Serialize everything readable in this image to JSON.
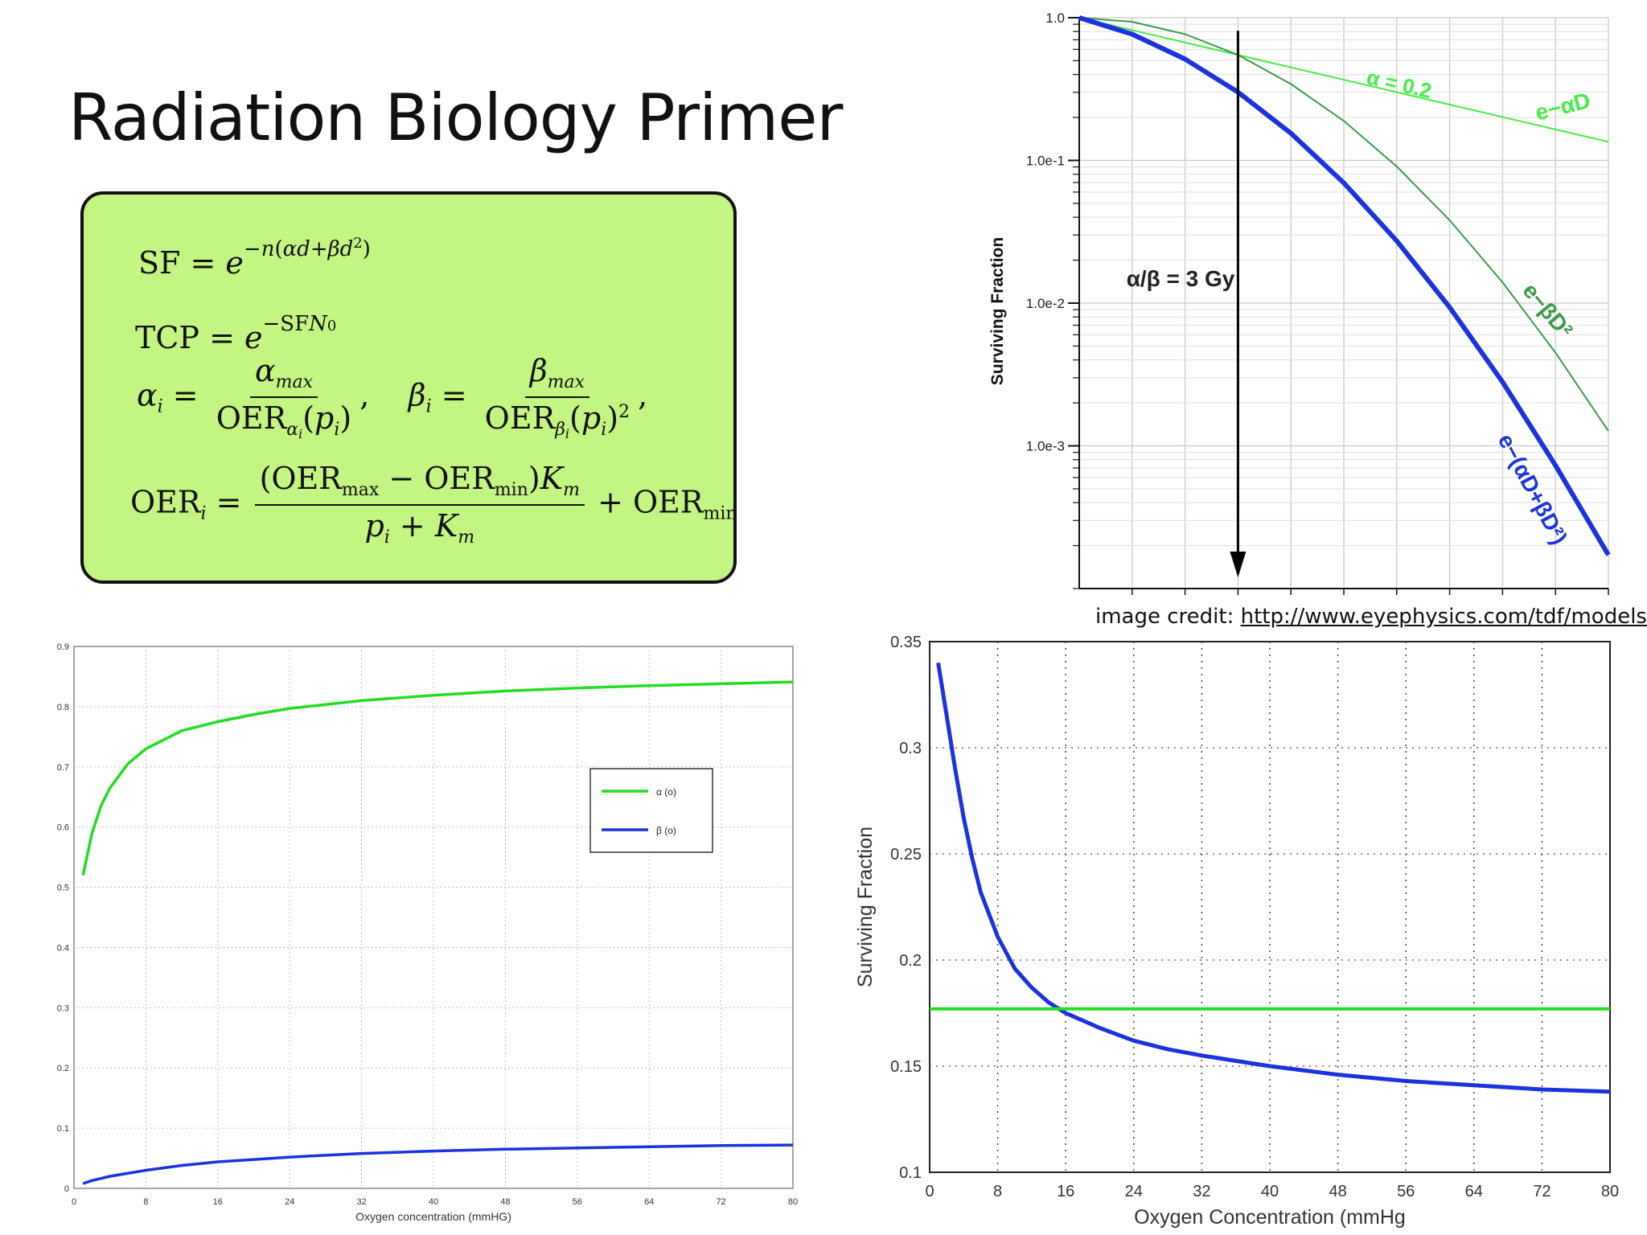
{
  "slide_title": "Radiation Biology Primer",
  "equations": {
    "sf_lhs": "SF",
    "tcp_lhs": "TCP",
    "oer_lhs": "OER"
  },
  "credit": {
    "prefix": "image credit:",
    "link": "http://www.eyephysics.com/tdf/models.htm"
  },
  "colors": {
    "green": "#22dd22",
    "blue": "#1a33dd",
    "dark_green": "#3a9a4a",
    "bright_green": "#44ee44",
    "box_bg": "#c3f582"
  },
  "chart_data": [
    {
      "type": "line",
      "id": "survival-curves",
      "ylabel": "Surviving Fraction",
      "yscale": "log",
      "ytick_labels": [
        "1.0",
        "1.0e-1",
        "1.0e-2",
        "1.0e-3"
      ],
      "ylim": [
        0.0001,
        1.0
      ],
      "xlim": [
        0,
        10
      ],
      "annotations": [
        "α/β = 3 Gy",
        "α = 0.2"
      ],
      "series": [
        {
          "name": "e−αD",
          "x": [
            0,
            10
          ],
          "y": [
            1.0,
            0.135
          ]
        },
        {
          "name": "e−βD²",
          "x": [
            0,
            1,
            2,
            3,
            4,
            5,
            6,
            7,
            8,
            9,
            10
          ],
          "y": [
            1.0,
            0.936,
            0.766,
            0.549,
            0.343,
            0.189,
            0.0907,
            0.0381,
            0.014,
            0.0045,
            0.00127
          ]
        },
        {
          "name": "e−(αD+βD²)",
          "x": [
            0,
            1,
            2,
            3,
            4,
            5,
            6,
            7,
            8,
            9,
            10
          ],
          "y": [
            1.0,
            0.766,
            0.513,
            0.301,
            0.155,
            0.0695,
            0.0273,
            0.00935,
            0.0028,
            0.00073,
            0.000172
          ]
        }
      ]
    },
    {
      "type": "line",
      "id": "alpha-beta-vs-oxygen",
      "xlabel": "Oxygen concentration (mmHG)",
      "xticks": [
        0,
        8,
        16,
        24,
        32,
        40,
        48,
        56,
        64,
        72,
        80
      ],
      "yticks": [
        0,
        0.1,
        0.2,
        0.3,
        0.4,
        0.5,
        0.6,
        0.7,
        0.8,
        0.9
      ],
      "xlim": [
        0,
        80
      ],
      "ylim": [
        0,
        0.9
      ],
      "legend": "top-right",
      "series": [
        {
          "name": "α (o)",
          "x": [
            1,
            2,
            3,
            4,
            6,
            8,
            12,
            16,
            20,
            24,
            32,
            40,
            48,
            56,
            64,
            72,
            80
          ],
          "y": [
            0.52,
            0.59,
            0.635,
            0.665,
            0.705,
            0.73,
            0.76,
            0.775,
            0.787,
            0.797,
            0.81,
            0.819,
            0.826,
            0.831,
            0.835,
            0.838,
            0.841
          ]
        },
        {
          "name": "β (o)",
          "x": [
            1,
            2,
            4,
            8,
            12,
            16,
            20,
            24,
            32,
            40,
            48,
            56,
            64,
            72,
            80
          ],
          "y": [
            0.008,
            0.013,
            0.02,
            0.03,
            0.038,
            0.044,
            0.048,
            0.052,
            0.058,
            0.062,
            0.065,
            0.067,
            0.069,
            0.071,
            0.072
          ]
        }
      ]
    },
    {
      "type": "line",
      "id": "sf-vs-oxygen",
      "xlabel": "Oxygen Concentration (mmHg",
      "ylabel": "Surviving Fraction",
      "xticks": [
        0,
        8,
        16,
        24,
        32,
        40,
        48,
        56,
        64,
        72,
        80
      ],
      "yticks": [
        0.1,
        0.15,
        0.2,
        0.25,
        0.3,
        0.35
      ],
      "xlim": [
        0,
        80
      ],
      "ylim": [
        0.1,
        0.35
      ],
      "series": [
        {
          "x": [
            1,
            2,
            3,
            4,
            5,
            6,
            8,
            10,
            12,
            14,
            16,
            20,
            24,
            28,
            32,
            40,
            48,
            56,
            64,
            72,
            80
          ],
          "y": [
            0.34,
            0.315,
            0.29,
            0.267,
            0.248,
            0.232,
            0.211,
            0.196,
            0.187,
            0.18,
            0.175,
            0.168,
            0.162,
            0.158,
            0.155,
            0.15,
            0.146,
            0.143,
            0.141,
            0.139,
            0.138
          ]
        },
        {
          "x": [
            0,
            80
          ],
          "y": [
            0.177,
            0.177
          ]
        }
      ]
    }
  ]
}
